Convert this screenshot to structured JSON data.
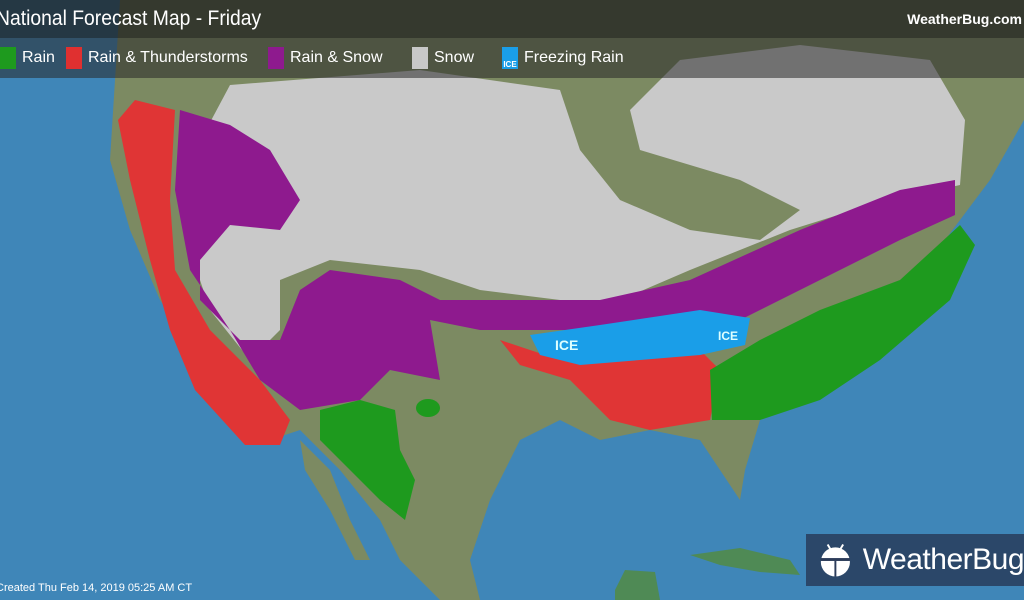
{
  "header": {
    "title": "National Forecast Map - Friday",
    "site": "WeatherBug.com"
  },
  "legend": [
    {
      "label": "Rain",
      "color": "#1e9a1e",
      "icon": "raindrop-icon"
    },
    {
      "label": "Rain & Thunderstorms",
      "color": "#e03030",
      "icon": "lightning-icon"
    },
    {
      "label": "Rain & Snow",
      "color": "#8e1a8e",
      "icon": "snowflake-icon"
    },
    {
      "label": "Snow",
      "color": "#c8c8c8",
      "icon": "snowflake-icon"
    },
    {
      "label": "Freezing Rain",
      "color": "#1a9ee8",
      "icon": "ice-icon",
      "badge": "ICE"
    }
  ],
  "map": {
    "ice_labels": [
      "ICE",
      "ICE"
    ],
    "colors": {
      "ocean": "#3f86b8",
      "land": "#8a8a66"
    }
  },
  "footer": {
    "created": "Created Thu Feb 14, 2019 05:25 AM CT"
  },
  "logo": {
    "text": "WeatherBug"
  }
}
